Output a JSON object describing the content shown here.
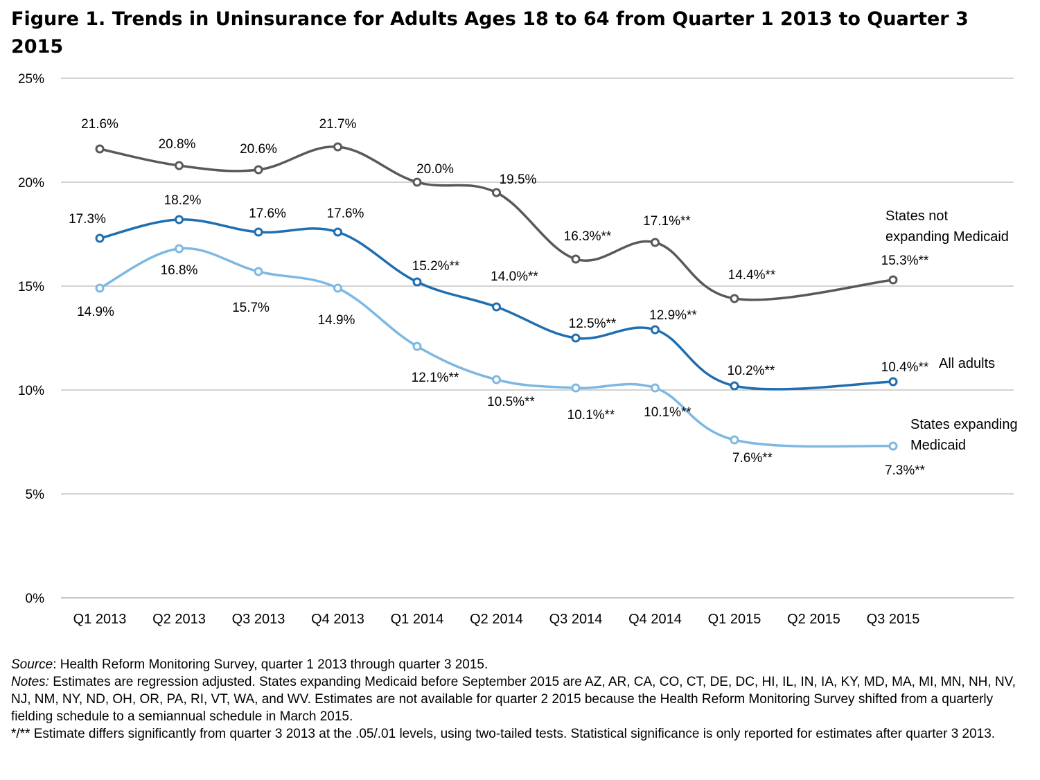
{
  "title": "Figure 1. Trends in Uninsurance for Adults Ages 18 to 64 from Quarter 1 2013 to Quarter 3 2015",
  "chart_data": {
    "type": "line",
    "categories": [
      "Q1 2013",
      "Q2 2013",
      "Q3 2013",
      "Q4 2013",
      "Q1 2014",
      "Q2 2014",
      "Q3 2014",
      "Q4 2014",
      "Q1 2015",
      "Q2 2015",
      "Q3 2015"
    ],
    "y_ticks": [
      "0%",
      "5%",
      "10%",
      "15%",
      "20%",
      "25%"
    ],
    "ylim": [
      0,
      25
    ],
    "grid": true,
    "series": [
      {
        "name": "States not expanding Medicaid",
        "name_lines": [
          "States not",
          "expanding Medicaid"
        ],
        "color": "#595959",
        "values": [
          21.6,
          20.8,
          20.6,
          21.7,
          20.0,
          19.5,
          16.3,
          17.1,
          14.4,
          null,
          15.3
        ],
        "labels": [
          "21.6%",
          "20.8%",
          "20.6%",
          "21.7%",
          "20.0%",
          "19.5%",
          "16.3%**",
          "17.1%**",
          "14.4%**",
          null,
          "15.3%**"
        ]
      },
      {
        "name": "All adults",
        "name_lines": [
          "All adults"
        ],
        "color": "#1f6eb0",
        "values": [
          17.3,
          18.2,
          17.6,
          17.6,
          15.2,
          14.0,
          12.5,
          12.9,
          10.2,
          null,
          10.4
        ],
        "labels": [
          "17.3%",
          "18.2%",
          "17.6%",
          "17.6%",
          "15.2%**",
          "14.0%**",
          "12.5%**",
          "12.9%**",
          "10.2%**",
          null,
          "10.4%**"
        ]
      },
      {
        "name": "States expanding Medicaid",
        "name_lines": [
          "States expanding",
          "Medicaid"
        ],
        "color": "#7db8e3",
        "values": [
          14.9,
          16.8,
          15.7,
          14.9,
          12.1,
          10.5,
          10.1,
          10.1,
          7.6,
          null,
          7.3
        ],
        "labels": [
          "14.9%",
          "16.8%",
          "15.7%",
          "14.9%",
          "12.1%**",
          "10.5%**",
          "10.1%**",
          "10.1%**",
          "7.6%**",
          null,
          "7.3%**"
        ]
      }
    ]
  },
  "footnotes": {
    "source_label": "Source",
    "source_text": ": Health Reform Monitoring Survey, quarter 1 2013 through quarter 3 2015.",
    "notes_label": "Notes:",
    "notes_text": " Estimates are regression adjusted.  States expanding Medicaid before September 2015 are AZ, AR, CA, CO, CT, DE, DC, HI, IL, IN, IA, KY, MD, MA, MI, MN, NH, NV, NJ, NM, NY, ND, OH, OR, PA, RI, VT, WA, and WV.  Estimates are not available for quarter 2 2015 because the Health Reform Monitoring Survey shifted from a quarterly fielding schedule to a semiannual schedule in March 2015.",
    "significance_text": "*/** Estimate differs significantly from quarter 3 2013 at the .05/.01 levels, using two-tailed tests. Statistical significance is only reported for estimates after quarter 3 2013."
  }
}
